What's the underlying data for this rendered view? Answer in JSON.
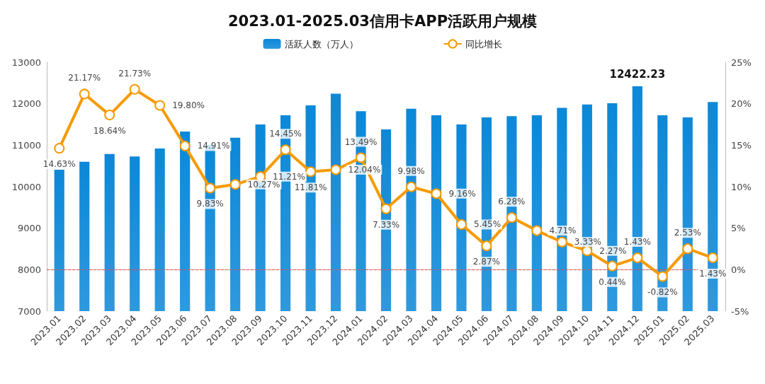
{
  "chart_data": {
    "type": "bar",
    "title": "2023.01-2025.03信用卡APP活跃用户规模",
    "categories": [
      "2023.01",
      "2023.02",
      "2023.03",
      "2023.04",
      "2023.05",
      "2023.06",
      "2023.07",
      "2023.08",
      "2023.09",
      "2023.10",
      "2023.11",
      "2023.12",
      "2024.01",
      "2024.02",
      "2024.03",
      "2024.04",
      "2024.05",
      "2024.06",
      "2024.07",
      "2024.08",
      "2024.09",
      "2024.10",
      "2024.11",
      "2024.12",
      "2025.01",
      "2025.02",
      "2025.03"
    ],
    "series": [
      {
        "name": "活跃人数（万人）",
        "color": "#0b88d8",
        "values": [
          10410,
          10600,
          10790,
          10730,
          10920,
          11330,
          11010,
          11180,
          11500,
          11720,
          11960,
          12240,
          11820,
          11380,
          11880,
          11720,
          11500,
          11670,
          11700,
          11720,
          11900,
          11980,
          12010,
          12422.23,
          11720,
          11670,
          12040
        ],
        "value_labels": [
          null,
          null,
          null,
          null,
          null,
          null,
          null,
          null,
          null,
          null,
          null,
          null,
          null,
          null,
          null,
          null,
          null,
          null,
          null,
          null,
          null,
          null,
          null,
          "12422.23",
          null,
          null,
          null
        ]
      },
      {
        "name": "同比增长",
        "type": "line",
        "axis": "y2",
        "color": "#f79a00",
        "marker": "circle",
        "values": [
          14.63,
          21.17,
          18.64,
          21.73,
          19.8,
          14.91,
          9.83,
          10.27,
          11.21,
          14.45,
          11.81,
          12.04,
          13.49,
          7.33,
          9.98,
          9.16,
          5.45,
          2.87,
          6.28,
          4.71,
          3.33,
          2.27,
          0.44,
          1.43,
          -0.82,
          2.53,
          1.43
        ],
        "value_labels": [
          "14.63%",
          "21.17%",
          "18.64%",
          "21.73%",
          "19.80%",
          "14.91%",
          "9.83%",
          "10.27%",
          "11.21%",
          "14.45%",
          "11.81%",
          "12.04%",
          "13.49%",
          "7.33%",
          "9.98%",
          "9.16%",
          "5.45%",
          "2.87%",
          "6.28%",
          "4.71%",
          "3.33%",
          "2.27%",
          "0.44%",
          "1.43%",
          "-0.82%",
          "2.53%",
          "1.43%"
        ]
      }
    ],
    "ylim": [
      7000,
      13000
    ],
    "yticks": [
      7000,
      8000,
      9000,
      10000,
      11000,
      12000,
      13000
    ],
    "y2lim": [
      -5,
      25
    ],
    "y2ticks": [
      {
        "value": -5,
        "label": "-5%"
      },
      {
        "value": 0,
        "label": "0%"
      },
      {
        "value": 5,
        "label": "5%"
      },
      {
        "value": 10,
        "label": "10%"
      },
      {
        "value": 15,
        "label": "15%"
      },
      {
        "value": 20,
        "label": "20%"
      },
      {
        "value": 25,
        "label": "25%"
      }
    ],
    "ref_lines": [
      {
        "axis": "y2",
        "value": 0,
        "color": "#e84c4c",
        "line_style": "dashed"
      }
    ],
    "grid": false,
    "legend": "top"
  }
}
